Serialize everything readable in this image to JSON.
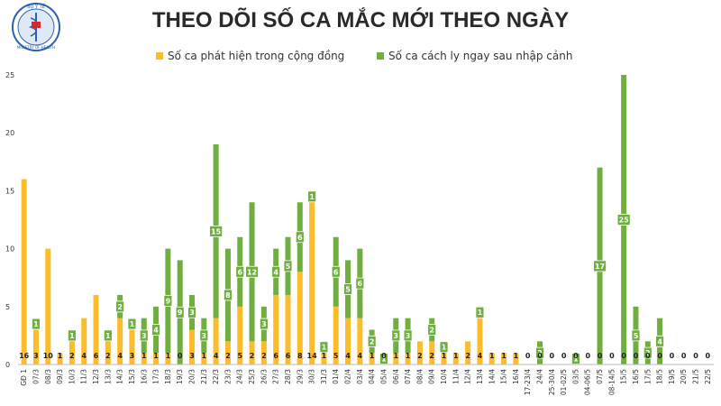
{
  "header": {
    "logo_text_top": "BỘ Y TẾ",
    "logo_text_bottom": "MINISTRY OF HEALTH"
  },
  "chart_data": {
    "type": "bar",
    "stacked": true,
    "title": "THEO DÕI SỐ CA MẮC MỚI THEO NGÀY",
    "ylim": [
      0,
      25
    ],
    "yticks": [
      0,
      5,
      10,
      15,
      20,
      25
    ],
    "grid": false,
    "legend_position": "top",
    "colors": {
      "community": "#FDBD2B",
      "quarantine": "#6FAE3F",
      "axis": "#bbbbbb"
    },
    "categories": [
      "GĐ 1",
      "07/3",
      "08/3",
      "09/3",
      "10/3",
      "11/3",
      "12/3",
      "13/3",
      "14/3",
      "15/3",
      "16/3",
      "17/3",
      "18/3",
      "19/3",
      "20/3",
      "21/3",
      "22/3",
      "23/3",
      "24/3",
      "25/3",
      "26/3",
      "27/3",
      "28/3",
      "29/3",
      "30/3",
      "31/3",
      "01/4",
      "02/4",
      "03/4",
      "04/4",
      "05/4",
      "06/4",
      "07/4",
      "08/4",
      "09/4",
      "10/4",
      "11/4",
      "12/4",
      "13/4",
      "14/4",
      "15/4",
      "16/4",
      "17-23/4",
      "24/4",
      "25-30/4",
      "01-02/5",
      "03/5",
      "04-06/5",
      "07/5",
      "08-14/5",
      "15/5",
      "16/5",
      "17/5",
      "18/5",
      "19/5",
      "20/5",
      "21/5",
      "22/5"
    ],
    "series": [
      {
        "name": "Số ca phát hiện trong cộng đồng",
        "values": [
          16,
          3,
          10,
          1,
          2,
          4,
          6,
          2,
          4,
          3,
          1,
          1,
          1,
          0,
          3,
          1,
          4,
          2,
          5,
          2,
          2,
          6,
          6,
          8,
          14,
          1,
          5,
          4,
          4,
          1,
          0,
          1,
          1,
          2,
          2,
          1,
          1,
          2,
          4,
          1,
          1,
          1,
          0,
          0,
          0,
          0,
          0,
          0,
          0,
          0,
          0,
          0,
          0,
          0,
          0,
          0,
          0,
          0
        ]
      },
      {
        "name": "Số ca cách ly ngay sau nhập cảnh",
        "values": [
          0,
          1,
          0,
          0,
          1,
          0,
          0,
          1,
          2,
          1,
          3,
          4,
          9,
          9,
          3,
          3,
          15,
          8,
          6,
          12,
          3,
          4,
          5,
          6,
          1,
          1,
          6,
          5,
          6,
          2,
          1,
          3,
          3,
          0,
          2,
          1,
          0,
          0,
          1,
          0,
          0,
          0,
          0,
          2,
          0,
          0,
          1,
          0,
          17,
          0,
          25,
          5,
          2,
          4,
          0,
          0,
          0,
          0
        ]
      }
    ],
    "bottom_labels": [
      "16",
      "3",
      "10",
      "1",
      "2",
      "4",
      "6",
      "2",
      "4",
      "3",
      "1",
      "1",
      "1",
      "0",
      "3",
      "1",
      "4",
      "2",
      "5",
      "2",
      "2",
      "6",
      "6",
      "8",
      "14",
      "1",
      "5",
      "4",
      "4",
      "1",
      "0",
      "1",
      "1",
      "2",
      "2",
      "1",
      "1",
      "2",
      "4",
      "1",
      "1",
      "1",
      "0",
      "0",
      "0",
      "0",
      "0",
      "0",
      "0",
      "0",
      "0",
      "0",
      "0",
      "0",
      "0",
      "0",
      "0",
      "0"
    ]
  }
}
